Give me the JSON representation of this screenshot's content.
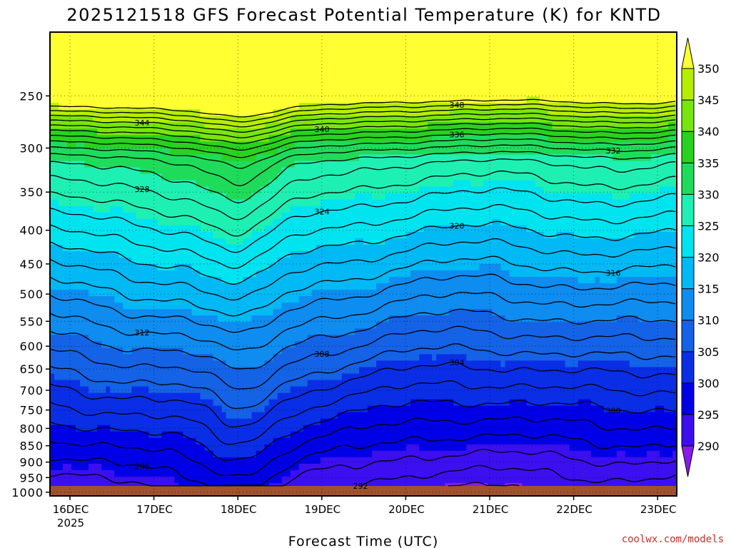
{
  "chart_data": {
    "type": "heatmap",
    "title": "2025121518 GFS Forecast Potential Temperature (K) for KNTD",
    "xlabel": "Forecast Time (UTC)",
    "ylabel": "",
    "credit": "coolwx.com/models",
    "x_ticks": [
      "16DEC",
      "17DEC",
      "18DEC",
      "19DEC",
      "20DEC",
      "21DEC",
      "22DEC",
      "23DEC"
    ],
    "x_year_label": "2025",
    "y_ticks": [
      250,
      300,
      350,
      400,
      450,
      500,
      550,
      600,
      650,
      700,
      750,
      800,
      850,
      900,
      950,
      1000
    ],
    "y_range_hpa": [
      1013,
      200
    ],
    "y_scale": "log-pressure",
    "grid": true,
    "colorbar": {
      "levels": [
        290,
        295,
        300,
        305,
        310,
        315,
        320,
        325,
        330,
        335,
        340,
        345,
        350
      ],
      "colors": [
        "#8b1ae8",
        "#3c0ff0",
        "#0000e6",
        "#0a2ee6",
        "#1462e6",
        "#0e8cf0",
        "#00b9f5",
        "#00e4f0",
        "#1ef0b4",
        "#1edc5a",
        "#28d21e",
        "#78e60a",
        "#b4ee00",
        "#ffff32"
      ]
    },
    "contour_interval": 2,
    "contour_labels": [
      "344",
      "340",
      "336",
      "332",
      "328",
      "324",
      "320",
      "316",
      "312",
      "308",
      "304",
      "300",
      "296",
      "292",
      "348"
    ],
    "ground_color": "#a0522d"
  }
}
